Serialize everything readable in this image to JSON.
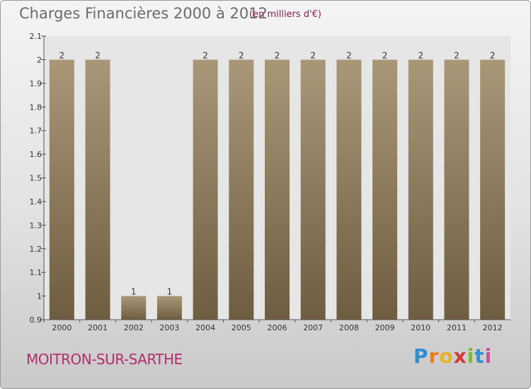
{
  "header": {
    "title": "Charges Financières 2000 à 2012",
    "subtitle": "(en milliers d'€)"
  },
  "footer": {
    "city": "MOITRON-SUR-SARTHE",
    "brand_letters": [
      "P",
      "r",
      "o",
      "x",
      "i",
      "t",
      "i"
    ],
    "brand_colors": [
      "#2f8fd0",
      "#e87d1e",
      "#e5b22a",
      "#d23a3a",
      "#7fb83d",
      "#2f8fd0",
      "#c94fa3"
    ]
  },
  "colors": {
    "bar_top": "#a89878",
    "bar_bottom": "#6e5d40",
    "plot_bg": "#e6e6e6",
    "text": "#333333"
  },
  "chart_data": {
    "type": "bar",
    "categories": [
      "2000",
      "2001",
      "2002",
      "2003",
      "2004",
      "2005",
      "2006",
      "2007",
      "2008",
      "2009",
      "2010",
      "2011",
      "2012"
    ],
    "values": [
      2,
      2,
      1,
      1,
      2,
      2,
      2,
      2,
      2,
      2,
      2,
      2,
      2
    ],
    "data_labels": [
      "2",
      "2",
      "1",
      "1",
      "2",
      "2",
      "2",
      "2",
      "2",
      "2",
      "2",
      "2",
      "2"
    ],
    "yticks": [
      0.9,
      1,
      1.1,
      1.2,
      1.3,
      1.4,
      1.5,
      1.6,
      1.7,
      1.8,
      1.9,
      2,
      2.1
    ],
    "ytick_labels": [
      "0.9",
      "1",
      "1.1",
      "1.2",
      "1.3",
      "1.4",
      "1.5",
      "1.6",
      "1.7",
      "1.8",
      "1.9",
      "2",
      "2.1"
    ],
    "ylim": [
      0.9,
      2.1
    ],
    "grid": false
  }
}
